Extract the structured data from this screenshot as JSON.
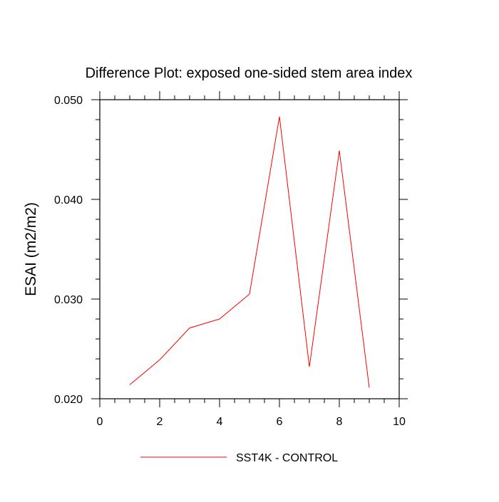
{
  "chart_data": {
    "type": "line",
    "title": "Difference Plot: exposed one-sided stem area index",
    "xlabel": "",
    "ylabel": "ESAI  (m2/m2)",
    "xlim": [
      0,
      10
    ],
    "ylim": [
      0.02,
      0.05
    ],
    "x_ticks": [
      0,
      2,
      4,
      6,
      8,
      10
    ],
    "x_tick_labels": [
      "0",
      "2",
      "4",
      "6",
      "8",
      "10"
    ],
    "y_ticks": [
      0.02,
      0.03,
      0.04,
      0.05
    ],
    "y_tick_labels": [
      "0.020",
      "0.030",
      "0.040",
      "0.050"
    ],
    "grid": false,
    "legend_position": "bottom",
    "series": [
      {
        "name": "SST4K - CONTROL",
        "color": "#ff0000",
        "x": [
          1,
          2,
          3,
          4,
          5,
          6,
          7,
          8,
          9
        ],
        "y": [
          0.0214,
          0.0239,
          0.0271,
          0.028,
          0.0305,
          0.0483,
          0.0232,
          0.0449,
          0.0211
        ]
      }
    ]
  }
}
